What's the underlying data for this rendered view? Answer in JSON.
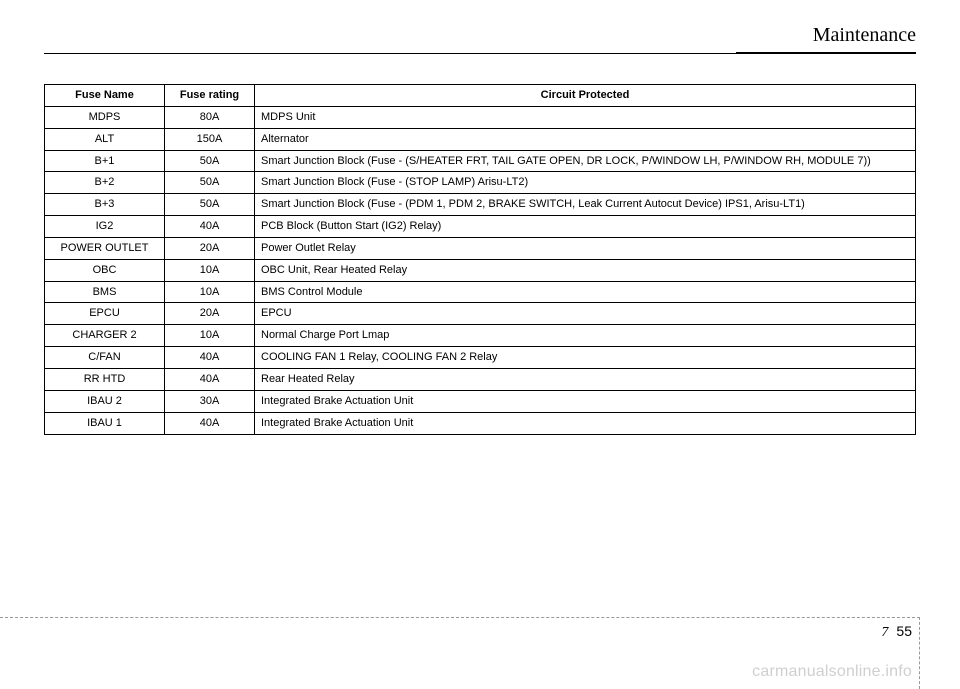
{
  "section_title": "Maintenance",
  "table": {
    "columns": [
      "Fuse Name",
      "Fuse rating",
      "Circuit Protected"
    ],
    "rows": [
      [
        "MDPS",
        "80A",
        "MDPS Unit"
      ],
      [
        "ALT",
        "150A",
        "Alternator"
      ],
      [
        "B+1",
        "50A",
        "Smart Junction Block (Fuse - (S/HEATER FRT, TAIL GATE OPEN, DR LOCK, P/WINDOW LH, P/WINDOW RH, MODULE 7))"
      ],
      [
        "B+2",
        "50A",
        "Smart Junction Block (Fuse - (STOP LAMP) Arisu-LT2)"
      ],
      [
        "B+3",
        "50A",
        "Smart Junction Block (Fuse - (PDM 1, PDM 2, BRAKE SWITCH, Leak Current Autocut Device) IPS1, Arisu-LT1)"
      ],
      [
        "IG2",
        "40A",
        "PCB Block (Button Start (IG2) Relay)"
      ],
      [
        "POWER OUTLET",
        "20A",
        "Power Outlet Relay"
      ],
      [
        "OBC",
        "10A",
        "OBC Unit, Rear Heated Relay"
      ],
      [
        "BMS",
        "10A",
        "BMS Control Module"
      ],
      [
        "EPCU",
        "20A",
        "EPCU"
      ],
      [
        "CHARGER 2",
        "10A",
        "Normal Charge Port Lmap"
      ],
      [
        "C/FAN",
        "40A",
        "COOLING FAN 1 Relay, COOLING FAN 2 Relay"
      ],
      [
        "RR HTD",
        "40A",
        "Rear Heated Relay"
      ],
      [
        "IBAU 2",
        "30A",
        "Integrated Brake Actuation Unit"
      ],
      [
        "IBAU 1",
        "40A",
        "Integrated Brake Actuation Unit"
      ]
    ]
  },
  "page": {
    "chapter": "7",
    "number": "55"
  },
  "watermark": "carmanualsonline.info"
}
